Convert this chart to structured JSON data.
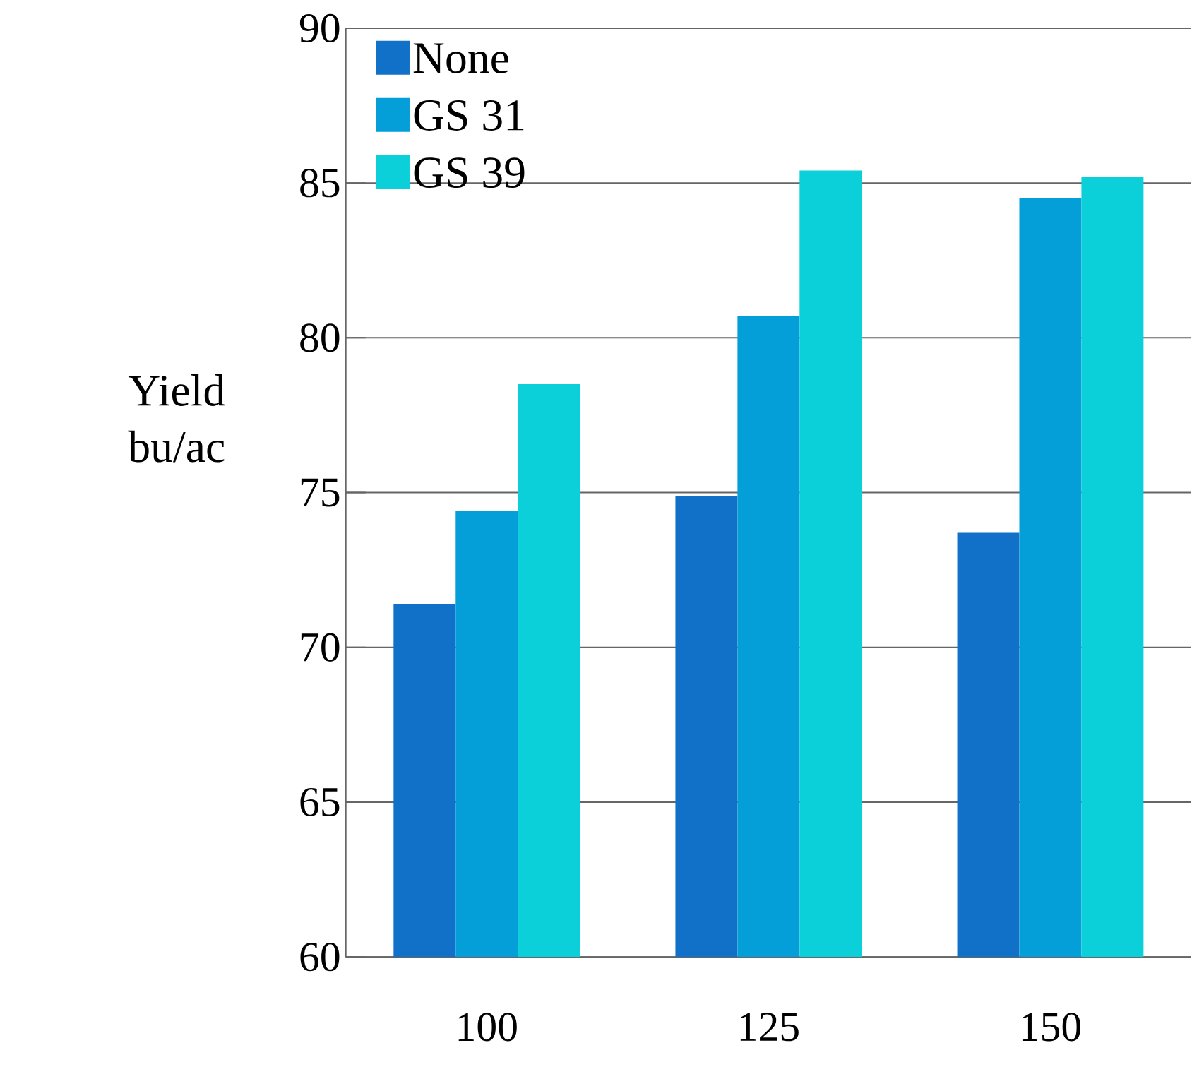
{
  "chart_data": {
    "type": "bar",
    "ylabel": "Yield bu/ac",
    "categories": [
      "100",
      "125",
      "150"
    ],
    "series": [
      {
        "name": "None",
        "color": "#1170c8",
        "values": [
          71.4,
          74.9,
          73.7
        ]
      },
      {
        "name": "GS 31",
        "color": "#049ed9",
        "values": [
          74.4,
          80.7,
          84.5
        ]
      },
      {
        "name": "GS 39",
        "color": "#0bd0d9",
        "values": [
          78.5,
          85.4,
          85.2
        ]
      }
    ],
    "ylim": [
      60,
      90
    ],
    "yticks": [
      60,
      65,
      70,
      75,
      80,
      85,
      90
    ],
    "grid": "y",
    "legend": "top left"
  }
}
